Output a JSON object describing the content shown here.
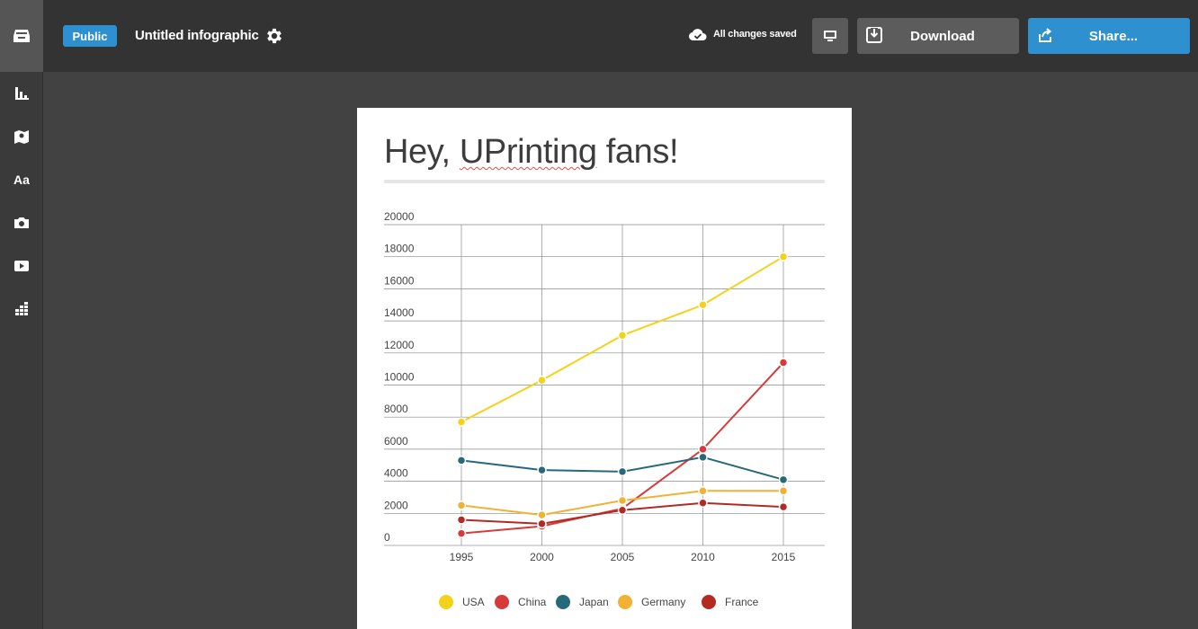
{
  "topbar": {
    "visibility_badge": "Public",
    "document_title": "Untitled infographic",
    "save_status": "All changes saved",
    "download_label": "Download",
    "share_label": "Share..."
  },
  "sidebar": {
    "tools": [
      {
        "icon": "chart-icon"
      },
      {
        "icon": "map-icon"
      },
      {
        "icon": "text-icon",
        "label": "Aa"
      },
      {
        "icon": "camera-icon"
      },
      {
        "icon": "video-icon"
      },
      {
        "icon": "grid-icon"
      }
    ]
  },
  "infographic": {
    "title_pre": "Hey, ",
    "title_mark": "UPrinting",
    "title_post": " fans!"
  },
  "chart_data": {
    "type": "line",
    "title": "",
    "xlabel": "",
    "ylabel": "",
    "categories": [
      "1995",
      "2000",
      "2005",
      "2010",
      "2015"
    ],
    "ylim": [
      0,
      20000
    ],
    "yticks": [
      0,
      2000,
      4000,
      6000,
      8000,
      10000,
      12000,
      14000,
      16000,
      18000,
      20000
    ],
    "grid": true,
    "legend": "bottom",
    "series": [
      {
        "name": "USA",
        "color": "#f5d21a",
        "values": [
          7700,
          10300,
          13100,
          15000,
          18000
        ]
      },
      {
        "name": "China",
        "color": "#d63a3a",
        "values": [
          750,
          1200,
          2300,
          6000,
          11400
        ]
      },
      {
        "name": "Japan",
        "color": "#26697a",
        "values": [
          5300,
          4700,
          4600,
          5500,
          4100
        ]
      },
      {
        "name": "Germany",
        "color": "#f2b134",
        "values": [
          2500,
          1900,
          2800,
          3400,
          3400
        ]
      },
      {
        "name": "France",
        "color": "#b32a22",
        "values": [
          1600,
          1350,
          2200,
          2650,
          2400
        ]
      }
    ]
  }
}
